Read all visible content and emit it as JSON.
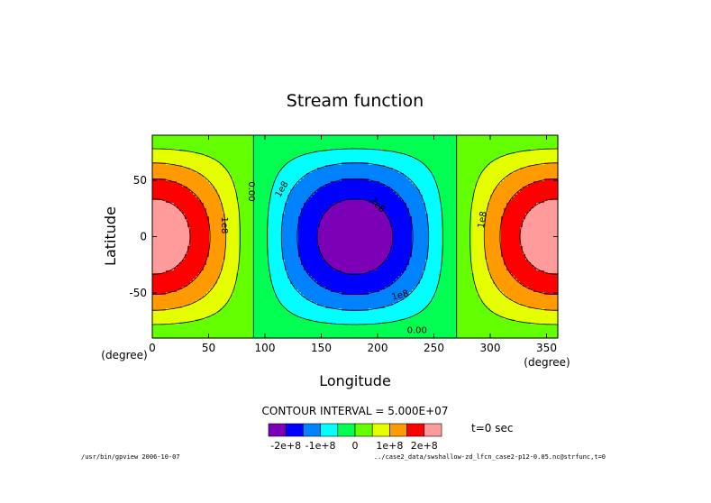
{
  "chart_data": {
    "type": "contour",
    "title": "Stream function",
    "xlabel": "Longitude",
    "ylabel": "Latitude",
    "x_unit": "(degree)",
    "y_unit": "(degree)",
    "xlim": [
      0,
      360
    ],
    "ylim": [
      -90,
      90
    ],
    "x_ticks": [
      0,
      50,
      100,
      150,
      200,
      250,
      300,
      350
    ],
    "y_ticks": [
      50,
      0,
      -50
    ],
    "field": {
      "amplitude": 240000000.0,
      "center_lon": 180,
      "form": "-A*cos(lon - center_lon)*cos(lat)"
    },
    "contour_interval_label": "CONTOUR INTERVAL = 5.000E+07",
    "contour_labels": [
      {
        "text": "0.00",
        "lon": 88,
        "lat": 40,
        "angle": 90
      },
      {
        "text": "1e8",
        "lon": 115,
        "lat": 42,
        "angle": -60
      },
      {
        "text": "2e8",
        "lon": 200,
        "lat": 28,
        "angle": 45
      },
      {
        "text": "1e8",
        "lon": 64,
        "lat": 10,
        "angle": 90
      },
      {
        "text": "1e8",
        "lon": 220,
        "lat": -52,
        "angle": -15
      },
      {
        "text": "0.00",
        "lon": 235,
        "lat": -83,
        "angle": 0
      },
      {
        "text": "1e8",
        "lon": 293,
        "lat": 15,
        "angle": -80
      }
    ],
    "levels": [
      -250000000.0,
      -200000000.0,
      -150000000.0,
      -100000000.0,
      -50000000.0,
      0,
      50000000.0,
      100000000.0,
      150000000.0,
      200000000.0,
      250000000.0
    ],
    "colors": [
      "#7c00b6",
      "#0000ff",
      "#0082ff",
      "#00ffff",
      "#00ff50",
      "#64ff00",
      "#e6ff00",
      "#ff9b00",
      "#ff0000",
      "#ff9b9b"
    ],
    "colorbar_labels": [
      "-2e+8",
      "-1e+8",
      "0",
      "1e+8",
      "2e+8"
    ],
    "colorbar_label_levels": [
      -200000000.0,
      -100000000.0,
      0,
      100000000.0,
      200000000.0
    ],
    "time_label": "t=0 sec"
  },
  "footer": {
    "left": "/usr/bin/gpview  2006-10-07",
    "right": "../case2_data/swshallow-zd_lfcn_case2-p12-0.05.nc@strfunc,t=0"
  }
}
